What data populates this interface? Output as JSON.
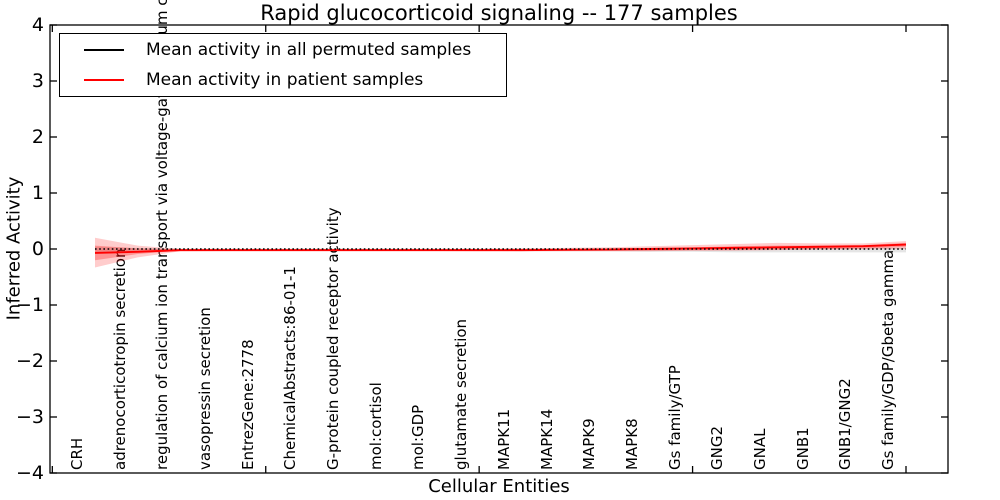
{
  "figure": {
    "legend": {
      "entries": [
        {
          "label": "Mean activity in all permuted samples",
          "color": "#000000"
        },
        {
          "label": "Mean activity in patient samples",
          "color": "#ff0000"
        }
      ],
      "position": "upper left"
    }
  },
  "chart_data": {
    "type": "line",
    "title": "Rapid glucocorticoid signaling -- 177 samples",
    "xlabel": "Cellular Entities",
    "ylabel": "Inferred Activity",
    "ylim": [
      -4,
      4
    ],
    "yticks": [
      -4,
      -3,
      -2,
      -1,
      0,
      1,
      2,
      3,
      4
    ],
    "xtick_values": [
      0,
      5,
      10,
      15,
      20
    ],
    "grid": false,
    "legend_position": "upper left",
    "categories": [
      "CRH",
      "adrenocorticotropin secretion",
      "regulation of calcium ion transport via voltage-gated calcium channels",
      "vasopressin secretion",
      "EntrezGene:2778",
      "ChemicalAbstracts:86-01-1",
      "G-protein coupled receptor activity",
      "mol:cortisol",
      "mol:GDP",
      "glutamate secretion",
      "MAPK11",
      "MAPK14",
      "MAPK9",
      "MAPK8",
      "Gs family/GTP",
      "GNG2",
      "GNAL",
      "GNB1",
      "GNB1/GNG2",
      "Gs family/GDP/Gbeta gamma"
    ],
    "series": [
      {
        "name": "Mean activity in all permuted samples",
        "kind": "line",
        "color": "#000000",
        "linestyle": "dotted",
        "values": [
          0,
          0,
          0,
          0,
          0,
          0,
          0,
          0,
          0,
          0,
          0,
          0,
          0,
          0,
          0,
          0,
          0,
          0,
          0,
          0
        ]
      },
      {
        "name": "Mean activity in patient samples",
        "kind": "line",
        "color": "#ff0000",
        "linestyle": "solid",
        "values": [
          -0.07,
          -0.05,
          -0.02,
          -0.02,
          -0.02,
          -0.02,
          -0.02,
          -0.02,
          -0.02,
          -0.02,
          -0.02,
          -0.015,
          -0.01,
          0.0,
          0.01,
          0.02,
          0.03,
          0.04,
          0.05,
          0.08
        ]
      },
      {
        "name": "permuted samples spread",
        "kind": "band",
        "color": "#888888",
        "opacity": 0.22,
        "upper": [
          0.04,
          0.02,
          0.01,
          0.01,
          0.01,
          0.01,
          0.01,
          0.01,
          0.01,
          0.01,
          0.01,
          0.01,
          0.01,
          0.02,
          0.02,
          0.02,
          0.02,
          0.02,
          0.02,
          0.03
        ],
        "lower": [
          -0.08,
          -0.04,
          -0.03,
          -0.03,
          -0.03,
          -0.03,
          -0.03,
          -0.03,
          -0.03,
          -0.03,
          -0.04,
          -0.04,
          -0.04,
          -0.05,
          -0.05,
          -0.06,
          -0.06,
          -0.06,
          -0.06,
          -0.06
        ]
      },
      {
        "name": "patient samples spread (outer)",
        "kind": "band",
        "color": "#ff0000",
        "opacity": 0.2,
        "upper": [
          0.2,
          0.06,
          0.0,
          -0.005,
          -0.005,
          -0.005,
          -0.005,
          -0.005,
          -0.005,
          0.0,
          0.01,
          0.02,
          0.03,
          0.05,
          0.07,
          0.09,
          0.11,
          0.1,
          0.1,
          0.14
        ],
        "lower": [
          -0.33,
          -0.15,
          -0.04,
          -0.035,
          -0.035,
          -0.035,
          -0.035,
          -0.035,
          -0.035,
          -0.04,
          -0.04,
          -0.04,
          -0.04,
          -0.04,
          -0.03,
          -0.03,
          -0.02,
          -0.01,
          -0.005,
          0.0
        ]
      },
      {
        "name": "patient samples spread (inner)",
        "kind": "band",
        "color": "#ff0000",
        "opacity": 0.28,
        "upper": [
          0.06,
          0.01,
          -0.01,
          -0.012,
          -0.012,
          -0.012,
          -0.012,
          -0.012,
          -0.012,
          -0.01,
          -0.005,
          0.0,
          0.01,
          0.02,
          0.03,
          0.05,
          0.06,
          0.06,
          0.07,
          0.11
        ],
        "lower": [
          -0.2,
          -0.09,
          -0.03,
          -0.028,
          -0.028,
          -0.028,
          -0.028,
          -0.028,
          -0.028,
          -0.03,
          -0.03,
          -0.03,
          -0.03,
          -0.03,
          -0.025,
          -0.02,
          -0.01,
          0.0,
          0.01,
          0.04
        ]
      }
    ]
  }
}
